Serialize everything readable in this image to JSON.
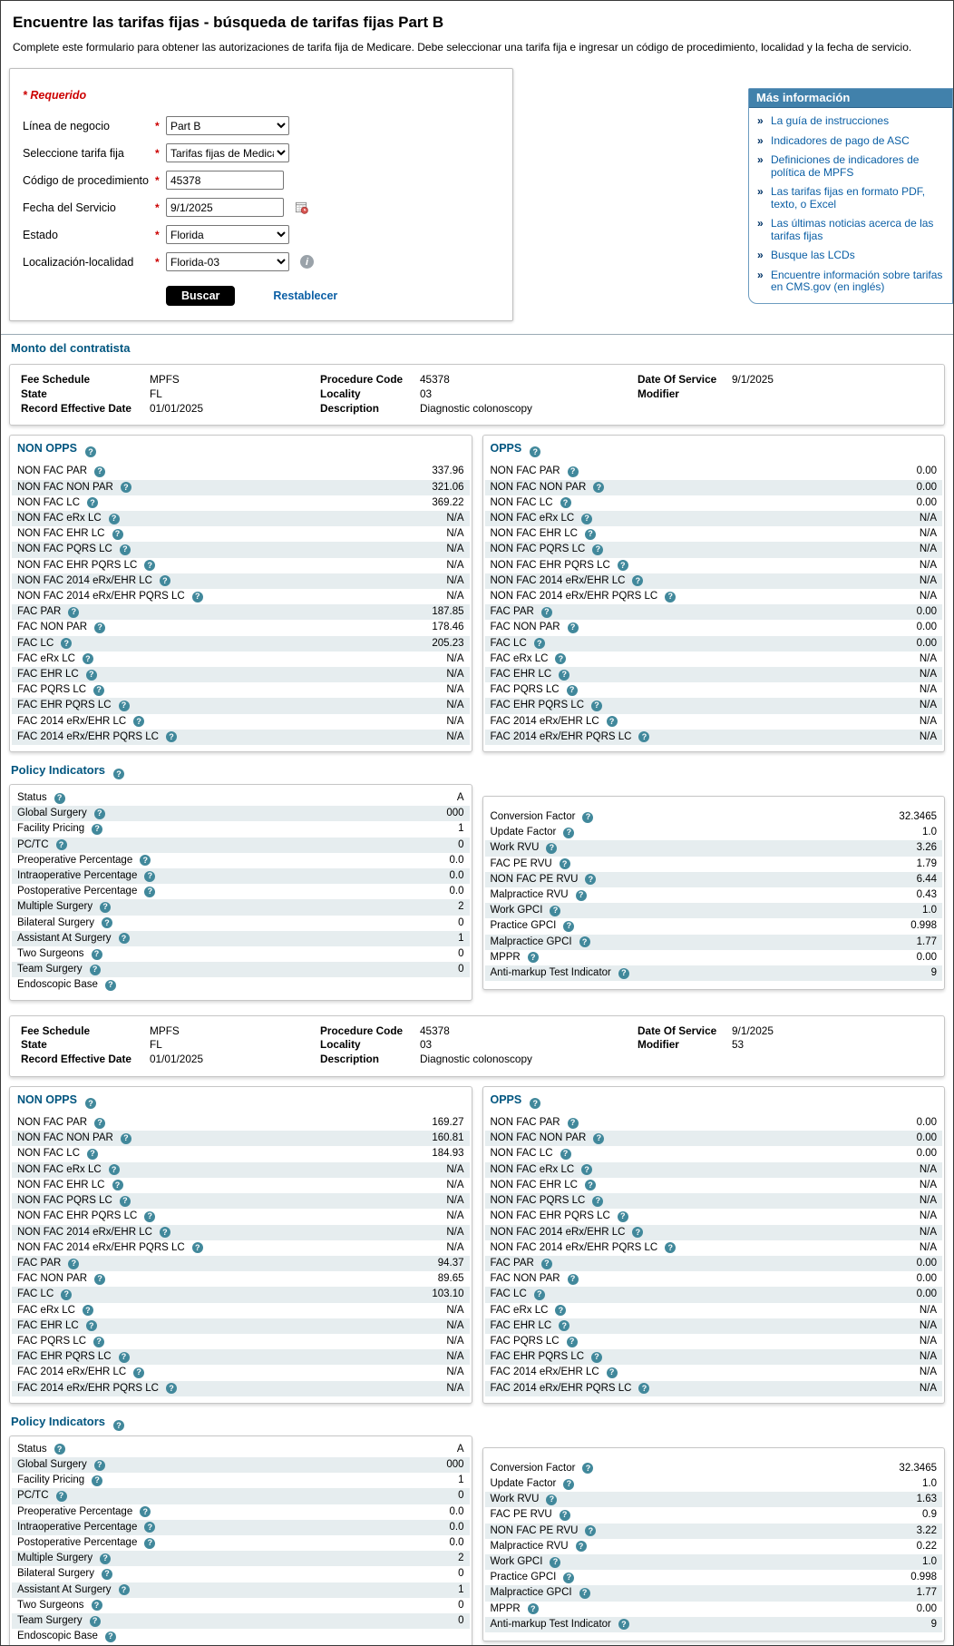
{
  "page": {
    "title": "Encuentre las tarifas fijas - búsqueda de tarifas fijas Part B",
    "intro": "Complete este formulario para obtener las autorizaciones de tarifa fija de Medicare. Debe seleccionar una tarifa fija e ingresar un código de procedimiento, localidad y la fecha de servicio."
  },
  "form": {
    "required_note": "* Requerido",
    "fields": [
      {
        "name": "business-line",
        "label": "Línea de negocio",
        "type": "select",
        "value": "Part B"
      },
      {
        "name": "fee-schedule",
        "label": "Seleccione tarifa fija",
        "type": "select",
        "value": "Tarifas fijas de Medica"
      },
      {
        "name": "procedure-code",
        "label": "Código de procedimiento",
        "type": "text",
        "value": "45378"
      },
      {
        "name": "date-of-service",
        "label": "Fecha del Servicio",
        "type": "text",
        "value": "9/1/2025",
        "icon": "calendar-icon"
      },
      {
        "name": "state",
        "label": "Estado",
        "type": "select",
        "value": "Florida"
      },
      {
        "name": "locality",
        "label": "Localización-localidad",
        "type": "select",
        "value": "Florida-03",
        "icon": "info-icon"
      }
    ],
    "search_label": "Buscar",
    "reset_label": "Restablecer"
  },
  "more_info": {
    "title": "Más información",
    "links": [
      "La guía de instrucciones",
      "Indicadores de pago de ASC",
      "Definiciones de indicadores de política de MPFS",
      "Las tarifas fijas en formato PDF, texto, o Excel",
      "Las últimas noticias acerca de las tarifas fijas",
      "Busque las LCDs",
      "Encuentre información sobre tarifas en CMS.gov (en inglés)"
    ]
  },
  "contractor_section_title": "Monto del contratista",
  "results": [
    {
      "info": {
        "col1": [
          [
            "Fee Schedule",
            "MPFS"
          ],
          [
            "State",
            "FL"
          ],
          [
            "Record Effective Date",
            "01/01/2025"
          ]
        ],
        "col2": [
          [
            "Procedure Code",
            "45378"
          ],
          [
            "Locality",
            "03"
          ],
          [
            "Description",
            "Diagnostic colonoscopy"
          ]
        ],
        "col3": [
          [
            "Date Of Service",
            "9/1/2025"
          ],
          [
            "Modifier",
            ""
          ]
        ]
      },
      "non_opps": {
        "title": "NON OPPS",
        "rows": [
          [
            "NON FAC PAR",
            "337.96"
          ],
          [
            "NON FAC NON PAR",
            "321.06"
          ],
          [
            "NON FAC LC",
            "369.22"
          ],
          [
            "NON FAC eRx LC",
            "N/A"
          ],
          [
            "NON FAC EHR LC",
            "N/A"
          ],
          [
            "NON FAC PQRS LC",
            "N/A"
          ],
          [
            "NON FAC EHR PQRS LC",
            "N/A"
          ],
          [
            "NON FAC 2014 eRx/EHR LC",
            "N/A"
          ],
          [
            "NON FAC 2014 eRx/EHR PQRS LC",
            "N/A"
          ],
          [
            "FAC PAR",
            "187.85"
          ],
          [
            "FAC NON PAR",
            "178.46"
          ],
          [
            "FAC LC",
            "205.23"
          ],
          [
            "FAC eRx LC",
            "N/A"
          ],
          [
            "FAC EHR LC",
            "N/A"
          ],
          [
            "FAC PQRS LC",
            "N/A"
          ],
          [
            "FAC EHR PQRS LC",
            "N/A"
          ],
          [
            "FAC 2014 eRx/EHR LC",
            "N/A"
          ],
          [
            "FAC 2014 eRx/EHR PQRS LC",
            "N/A"
          ]
        ]
      },
      "opps": {
        "title": "OPPS",
        "rows": [
          [
            "NON FAC PAR",
            "0.00"
          ],
          [
            "NON FAC NON PAR",
            "0.00"
          ],
          [
            "NON FAC LC",
            "0.00"
          ],
          [
            "NON FAC eRx LC",
            "N/A"
          ],
          [
            "NON FAC EHR LC",
            "N/A"
          ],
          [
            "NON FAC PQRS LC",
            "N/A"
          ],
          [
            "NON FAC EHR PQRS LC",
            "N/A"
          ],
          [
            "NON FAC 2014 eRx/EHR LC",
            "N/A"
          ],
          [
            "NON FAC 2014 eRx/EHR PQRS LC",
            "N/A"
          ],
          [
            "FAC PAR",
            "0.00"
          ],
          [
            "FAC NON PAR",
            "0.00"
          ],
          [
            "FAC LC",
            "0.00"
          ],
          [
            "FAC eRx LC",
            "N/A"
          ],
          [
            "FAC EHR LC",
            "N/A"
          ],
          [
            "FAC PQRS LC",
            "N/A"
          ],
          [
            "FAC EHR PQRS LC",
            "N/A"
          ],
          [
            "FAC 2014 eRx/EHR LC",
            "N/A"
          ],
          [
            "FAC 2014 eRx/EHR PQRS LC",
            "N/A"
          ]
        ]
      },
      "policy_title": "Policy Indicators",
      "policy_left": {
        "rows": [
          [
            "Status",
            "A"
          ],
          [
            "Global Surgery",
            "000"
          ],
          [
            "Facility Pricing",
            "1"
          ],
          [
            "PC/TC",
            "0"
          ],
          [
            "Preoperative Percentage",
            "0.0"
          ],
          [
            "Intraoperative Percentage",
            "0.0"
          ],
          [
            "Postoperative Percentage",
            "0.0"
          ],
          [
            "Multiple Surgery",
            "2"
          ],
          [
            "Bilateral Surgery",
            "0"
          ],
          [
            "Assistant At Surgery",
            "1"
          ],
          [
            "Two Surgeons",
            "0"
          ],
          [
            "Team Surgery",
            "0"
          ],
          [
            "Endoscopic Base",
            ""
          ]
        ]
      },
      "policy_right": {
        "rows": [
          [
            "Conversion Factor",
            "32.3465"
          ],
          [
            "Update Factor",
            "1.0"
          ],
          [
            "Work RVU",
            "3.26"
          ],
          [
            "FAC PE RVU",
            "1.79"
          ],
          [
            "NON FAC PE RVU",
            "6.44"
          ],
          [
            "Malpractice RVU",
            "0.43"
          ],
          [
            "Work GPCI",
            "1.0"
          ],
          [
            "Practice GPCI",
            "0.998"
          ],
          [
            "Malpractice GPCI",
            "1.77"
          ],
          [
            "MPPR",
            "0.00"
          ],
          [
            "Anti-markup Test Indicator",
            "9"
          ]
        ]
      }
    },
    {
      "info": {
        "col1": [
          [
            "Fee Schedule",
            "MPFS"
          ],
          [
            "State",
            "FL"
          ],
          [
            "Record Effective Date",
            "01/01/2025"
          ]
        ],
        "col2": [
          [
            "Procedure Code",
            "45378"
          ],
          [
            "Locality",
            "03"
          ],
          [
            "Description",
            "Diagnostic colonoscopy"
          ]
        ],
        "col3": [
          [
            "Date Of Service",
            "9/1/2025"
          ],
          [
            "Modifier",
            "53"
          ]
        ]
      },
      "non_opps": {
        "title": "NON OPPS",
        "rows": [
          [
            "NON FAC PAR",
            "169.27"
          ],
          [
            "NON FAC NON PAR",
            "160.81"
          ],
          [
            "NON FAC LC",
            "184.93"
          ],
          [
            "NON FAC eRx LC",
            "N/A"
          ],
          [
            "NON FAC EHR LC",
            "N/A"
          ],
          [
            "NON FAC PQRS LC",
            "N/A"
          ],
          [
            "NON FAC EHR PQRS LC",
            "N/A"
          ],
          [
            "NON FAC 2014 eRx/EHR LC",
            "N/A"
          ],
          [
            "NON FAC 2014 eRx/EHR PQRS LC",
            "N/A"
          ],
          [
            "FAC PAR",
            "94.37"
          ],
          [
            "FAC NON PAR",
            "89.65"
          ],
          [
            "FAC LC",
            "103.10"
          ],
          [
            "FAC eRx LC",
            "N/A"
          ],
          [
            "FAC EHR LC",
            "N/A"
          ],
          [
            "FAC PQRS LC",
            "N/A"
          ],
          [
            "FAC EHR PQRS LC",
            "N/A"
          ],
          [
            "FAC 2014 eRx/EHR LC",
            "N/A"
          ],
          [
            "FAC 2014 eRx/EHR PQRS LC",
            "N/A"
          ]
        ]
      },
      "opps": {
        "title": "OPPS",
        "rows": [
          [
            "NON FAC PAR",
            "0.00"
          ],
          [
            "NON FAC NON PAR",
            "0.00"
          ],
          [
            "NON FAC LC",
            "0.00"
          ],
          [
            "NON FAC eRx LC",
            "N/A"
          ],
          [
            "NON FAC EHR LC",
            "N/A"
          ],
          [
            "NON FAC PQRS LC",
            "N/A"
          ],
          [
            "NON FAC EHR PQRS LC",
            "N/A"
          ],
          [
            "NON FAC 2014 eRx/EHR LC",
            "N/A"
          ],
          [
            "NON FAC 2014 eRx/EHR PQRS LC",
            "N/A"
          ],
          [
            "FAC PAR",
            "0.00"
          ],
          [
            "FAC NON PAR",
            "0.00"
          ],
          [
            "FAC LC",
            "0.00"
          ],
          [
            "FAC eRx LC",
            "N/A"
          ],
          [
            "FAC EHR LC",
            "N/A"
          ],
          [
            "FAC PQRS LC",
            "N/A"
          ],
          [
            "FAC EHR PQRS LC",
            "N/A"
          ],
          [
            "FAC 2014 eRx/EHR LC",
            "N/A"
          ],
          [
            "FAC 2014 eRx/EHR PQRS LC",
            "N/A"
          ]
        ]
      },
      "policy_title": "Policy Indicators",
      "policy_left": {
        "rows": [
          [
            "Status",
            "A"
          ],
          [
            "Global Surgery",
            "000"
          ],
          [
            "Facility Pricing",
            "1"
          ],
          [
            "PC/TC",
            "0"
          ],
          [
            "Preoperative Percentage",
            "0.0"
          ],
          [
            "Intraoperative Percentage",
            "0.0"
          ],
          [
            "Postoperative Percentage",
            "0.0"
          ],
          [
            "Multiple Surgery",
            "2"
          ],
          [
            "Bilateral Surgery",
            "0"
          ],
          [
            "Assistant At Surgery",
            "1"
          ],
          [
            "Two Surgeons",
            "0"
          ],
          [
            "Team Surgery",
            "0"
          ],
          [
            "Endoscopic Base",
            ""
          ]
        ]
      },
      "policy_right": {
        "rows": [
          [
            "Conversion Factor",
            "32.3465"
          ],
          [
            "Update Factor",
            "1.0"
          ],
          [
            "Work RVU",
            "1.63"
          ],
          [
            "FAC PE RVU",
            "0.9"
          ],
          [
            "NON FAC PE RVU",
            "3.22"
          ],
          [
            "Malpractice RVU",
            "0.22"
          ],
          [
            "Work GPCI",
            "1.0"
          ],
          [
            "Practice GPCI",
            "0.998"
          ],
          [
            "Malpractice GPCI",
            "1.77"
          ],
          [
            "MPPR",
            "0.00"
          ],
          [
            "Anti-markup Test Indicator",
            "9"
          ]
        ]
      }
    }
  ],
  "colors": {
    "section_header_blue": "#00557f",
    "row_shade": "#e6edef",
    "info_panel_bar": "#4181ab",
    "link_blue": "#0b5fa5",
    "required_red": "#cc0000",
    "search_button_bg": "#000000",
    "help_icon_teal": "#41889b"
  }
}
